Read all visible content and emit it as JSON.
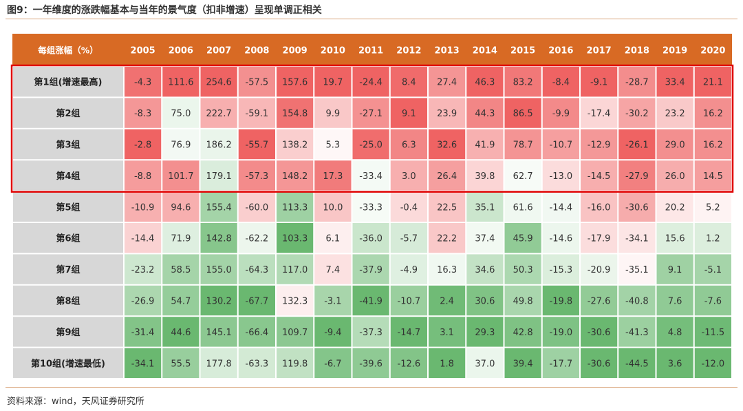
{
  "header": {
    "title": "图9：一年维度的涨跌幅基本与当年的景气度（扣非增速）呈现单调正相关"
  },
  "footer": {
    "source": "资料来源：wind，天风证券研究所"
  },
  "colors": {
    "header_bg": "#d86a24",
    "header_text": "#ffffff",
    "row_label_bg": "#d7d7d7",
    "highlight_border": "#e00000",
    "positive": "#ee5c5c",
    "negative": "#5db264",
    "neutral": "#ffffff"
  },
  "chart_data": {
    "type": "table",
    "corner_label": "每组涨幅（%）",
    "categories": [
      "2005",
      "2006",
      "2007",
      "2008",
      "2009",
      "2010",
      "2011",
      "2012",
      "2013",
      "2014",
      "2015",
      "2016",
      "2017",
      "2018",
      "2019",
      "2020"
    ],
    "highlighted_rows": [
      0,
      1,
      2,
      3
    ],
    "series": [
      {
        "name": "第1组(增速最高)",
        "values": [
          -4.3,
          111.6,
          254.6,
          -57.5,
          157.6,
          19.7,
          -24.4,
          8.4,
          27.4,
          46.3,
          83.2,
          -8.4,
          -9.1,
          -28.7,
          33.4,
          21.1
        ]
      },
      {
        "name": "第2组",
        "values": [
          -8.3,
          75.0,
          222.7,
          -59.1,
          154.8,
          9.9,
          -27.1,
          9.1,
          23.9,
          44.3,
          86.5,
          -9.9,
          -17.4,
          -30.2,
          23.2,
          16.2
        ]
      },
      {
        "name": "第3组",
        "values": [
          -2.8,
          76.9,
          186.2,
          -55.7,
          138.2,
          5.3,
          -25.0,
          6.3,
          32.6,
          41.9,
          78.7,
          -10.7,
          -12.9,
          -26.1,
          29.0,
          16.2
        ]
      },
      {
        "name": "第4组",
        "values": [
          -8.8,
          101.7,
          179.1,
          -57.3,
          148.2,
          17.3,
          -33.4,
          3.0,
          26.4,
          39.8,
          62.7,
          -13.0,
          -14.5,
          -27.9,
          26.0,
          14.5
        ]
      },
      {
        "name": "第5组",
        "values": [
          -10.9,
          94.6,
          155.4,
          -60.0,
          113.3,
          10.0,
          -33.3,
          -0.4,
          22.5,
          35.1,
          61.6,
          -14.4,
          -16.0,
          -30.6,
          20.2,
          5.2
        ]
      },
      {
        "name": "第6组",
        "values": [
          -14.4,
          71.9,
          142.8,
          -62.2,
          103.3,
          6.1,
          -36.0,
          -5.7,
          22.2,
          37.4,
          45.9,
          -14.6,
          -17.9,
          -34.1,
          15.6,
          1.2
        ]
      },
      {
        "name": "第7组",
        "values": [
          -23.2,
          58.5,
          155.0,
          -64.3,
          117.0,
          7.4,
          -37.9,
          -4.9,
          16.3,
          34.6,
          50.3,
          -15.3,
          -20.9,
          -35.1,
          9.1,
          -5.1
        ]
      },
      {
        "name": "第8组",
        "values": [
          -26.9,
          54.7,
          130.2,
          -67.7,
          132.3,
          -3.1,
          -41.9,
          -10.7,
          2.4,
          30.6,
          49.8,
          -19.8,
          -27.6,
          -40.8,
          7.6,
          -7.6
        ]
      },
      {
        "name": "第9组",
        "values": [
          -31.4,
          44.6,
          145.1,
          -66.4,
          109.7,
          -9.4,
          -37.3,
          -14.7,
          3.1,
          29.3,
          42.8,
          -19.0,
          -30.6,
          -41.3,
          4.8,
          -11.5
        ]
      },
      {
        "name": "第10组(增速最低)",
        "values": [
          -34.1,
          55.5,
          177.8,
          -63.3,
          119.8,
          -6.7,
          -39.6,
          -12.6,
          1.8,
          37.0,
          39.4,
          -17.7,
          -30.6,
          -44.5,
          3.6,
          -12.0
        ]
      }
    ]
  }
}
